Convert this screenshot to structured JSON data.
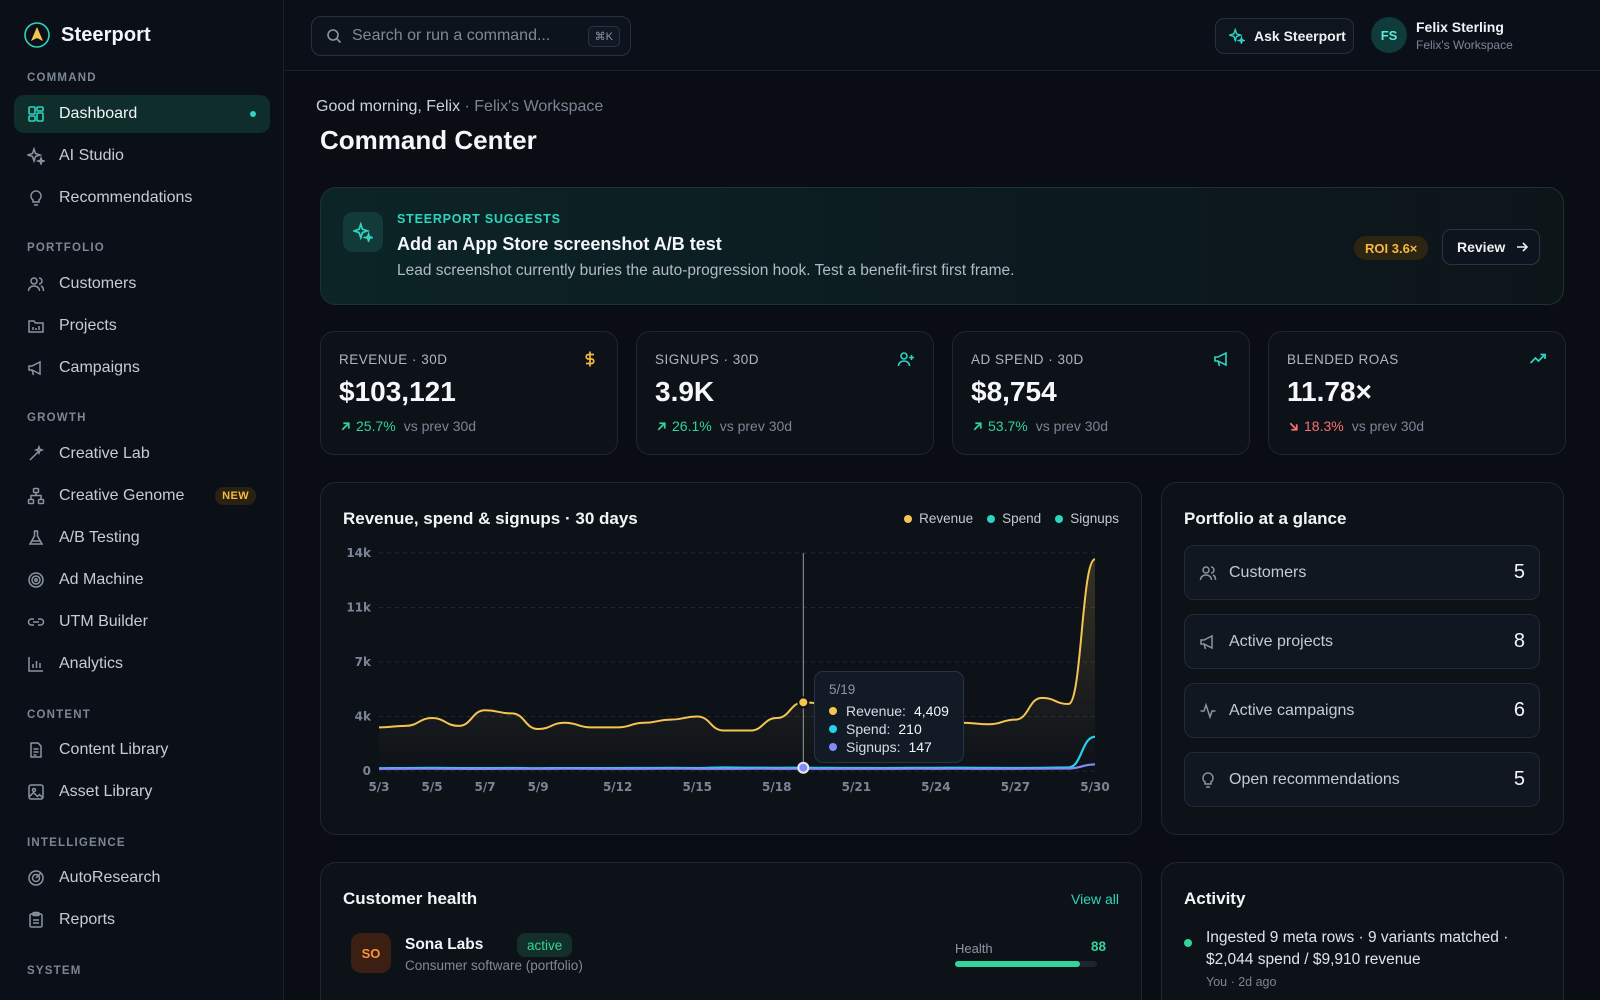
{
  "app": {
    "name": "Steerport"
  },
  "sidebar": {
    "sections": {
      "command": "COMMAND",
      "portfolio": "PORTFOLIO",
      "growth": "GROWTH",
      "content": "CONTENT",
      "intelligence": "INTELLIGENCE",
      "system": "SYSTEM"
    },
    "items": {
      "dashboard": "Dashboard",
      "ai_studio": "AI Studio",
      "recommendations": "Recommendations",
      "customers": "Customers",
      "projects": "Projects",
      "campaigns": "Campaigns",
      "creative_lab": "Creative Lab",
      "creative_genome": "Creative Genome",
      "creative_genome_badge": "NEW",
      "ab_testing": "A/B Testing",
      "ad_machine": "Ad Machine",
      "utm_builder": "UTM Builder",
      "analytics": "Analytics",
      "content_library": "Content Library",
      "asset_library": "Asset Library",
      "autoresearch": "AutoResearch",
      "reports": "Reports"
    }
  },
  "topbar": {
    "search_placeholder": "Search or run a command...",
    "search_shortcut": "⌘K",
    "ask_label": "Ask Steerport",
    "user": {
      "initials": "FS",
      "name": "Felix Sterling",
      "workspace": "Felix's Workspace"
    }
  },
  "header": {
    "greeting": "Good morning, Felix",
    "workspace": " · Felix's Workspace",
    "title": "Command Center"
  },
  "suggestion": {
    "eyebrow": "STEERPORT SUGGESTS",
    "title": "Add an App Store screenshot A/B test",
    "description": "Lead screenshot currently buries the auto-progression hook. Test a benefit-first first frame.",
    "roi": "ROI 3.6×",
    "action": "Review"
  },
  "kpis": [
    {
      "label": "REVENUE · 30D",
      "value": "$103,121",
      "delta": "25.7%",
      "direction": "up",
      "compare": "vs prev 30d",
      "icon": "dollar-icon"
    },
    {
      "label": "SIGNUPS · 30D",
      "value": "3.9K",
      "delta": "26.1%",
      "direction": "up",
      "compare": "vs prev 30d",
      "icon": "user-plus-icon"
    },
    {
      "label": "AD SPEND · 30D",
      "value": "$8,754",
      "delta": "53.7%",
      "direction": "up",
      "compare": "vs prev 30d",
      "icon": "megaphone-icon"
    },
    {
      "label": "BLENDED ROAS",
      "value": "11.78×",
      "delta": "18.3%",
      "direction": "down",
      "compare": "vs prev 30d",
      "icon": "trending-up-icon"
    }
  ],
  "colors": {
    "accent": "#2dd4bf",
    "revenue": "#f5c451",
    "spend": "#22d3ee",
    "signups": "#818cf8",
    "up": "#34d399",
    "down": "#f87171"
  },
  "chart_data": {
    "type": "line",
    "title": "Revenue, spend & signups · 30 days",
    "legend": [
      "Revenue",
      "Spend",
      "Signups"
    ],
    "legend_position": "top-right",
    "grid": true,
    "ylim": [
      0,
      14000
    ],
    "yticks": [
      "0",
      "4k",
      "7k",
      "11k",
      "14k"
    ],
    "ytick_values": [
      0,
      3500,
      7000,
      10500,
      14000
    ],
    "xticks": [
      "5/3",
      "5/5",
      "5/7",
      "5/9",
      "5/12",
      "5/15",
      "5/18",
      "5/21",
      "5/24",
      "5/27",
      "5/30"
    ],
    "xtick_index": [
      0,
      2,
      4,
      6,
      9,
      12,
      15,
      18,
      21,
      24,
      27
    ],
    "x": [
      "5/3",
      "5/4",
      "5/5",
      "5/6",
      "5/7",
      "5/8",
      "5/9",
      "5/10",
      "5/11",
      "5/12",
      "5/13",
      "5/14",
      "5/15",
      "5/16",
      "5/17",
      "5/18",
      "5/19",
      "5/20",
      "5/21",
      "5/22",
      "5/23",
      "5/24",
      "5/25",
      "5/26",
      "5/27",
      "5/28",
      "5/29",
      "5/30"
    ],
    "series": [
      {
        "name": "Revenue",
        "values": [
          2800,
          2900,
          3400,
          2900,
          3900,
          3700,
          2700,
          3100,
          2800,
          2800,
          3100,
          3300,
          3500,
          2600,
          2600,
          3400,
          4409,
          4300,
          3800,
          3400,
          2800,
          3000,
          3100,
          3000,
          3300,
          4700,
          4300,
          13600
        ]
      },
      {
        "name": "Spend",
        "values": [
          180,
          190,
          200,
          190,
          185,
          195,
          180,
          190,
          185,
          190,
          195,
          200,
          190,
          230,
          210,
          205,
          210,
          200,
          195,
          190,
          200,
          205,
          210,
          200,
          195,
          200,
          230,
          2200
        ]
      },
      {
        "name": "Signups",
        "values": [
          140,
          145,
          150,
          140,
          135,
          145,
          140,
          150,
          145,
          140,
          145,
          150,
          145,
          140,
          150,
          145,
          147,
          140,
          145,
          140,
          150,
          145,
          150,
          140,
          145,
          150,
          160,
          420
        ]
      }
    ],
    "tooltip": {
      "date": "5/19",
      "index": 16,
      "revenue": "4,409",
      "spend": "210",
      "signups": "147"
    }
  },
  "tooltip_labels": {
    "revenue": "Revenue:",
    "spend": "Spend:",
    "signups": "Signups:"
  },
  "glance": {
    "title": "Portfolio at a glance",
    "rows": [
      {
        "label": "Customers",
        "value": "5"
      },
      {
        "label": "Active projects",
        "value": "8"
      },
      {
        "label": "Active campaigns",
        "value": "6"
      },
      {
        "label": "Open recommendations",
        "value": "5"
      }
    ]
  },
  "customer_health": {
    "title": "Customer health",
    "view_all": "View all",
    "rows": [
      {
        "initials": "SO",
        "name": "Sona Labs",
        "status": "active",
        "subtitle": "Consumer software (portfolio)",
        "health_label": "Health",
        "health": 88
      }
    ]
  },
  "activity": {
    "title": "Activity",
    "items": [
      {
        "text": "Ingested 9 meta rows · 9 variants matched · $2,044 spend / $9,910 revenue",
        "meta": "You · 2d ago"
      }
    ]
  }
}
